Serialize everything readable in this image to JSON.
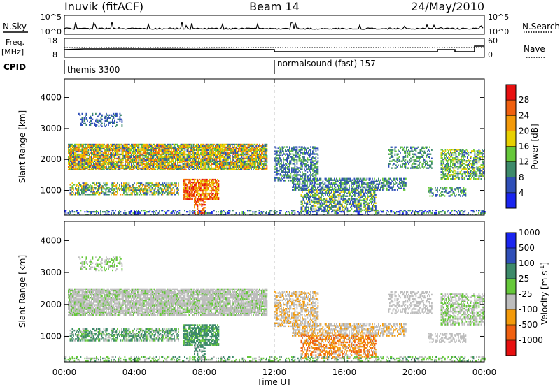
{
  "header": {
    "title_left": "Inuvik (fitACF)",
    "title_center": "Beam 14",
    "title_right": "24/May/2010"
  },
  "nsky_panel": {
    "left_label": "N.Sky",
    "right_label": "N.Search",
    "left_ticks": [
      "10^5",
      "10^0"
    ],
    "right_ticks": [
      "10^5",
      "10^0"
    ]
  },
  "freq_panel": {
    "left_label_1": "Freq.",
    "left_label_2": "[MHz]",
    "right_label": "Nave",
    "left_ticks": [
      "18",
      "8"
    ],
    "right_ticks": [
      "60",
      "0"
    ]
  },
  "cpid": {
    "label": "CPID",
    "modes": [
      {
        "name": "themis 3300",
        "start_hour": 0
      },
      {
        "name": "normalsound (fast) 157",
        "start_hour": 12
      }
    ]
  },
  "chart_data": [
    {
      "type": "heatmap",
      "name": "power",
      "ylabel": "Slant Range [km]",
      "xlabel": "",
      "xlim": [
        0,
        24
      ],
      "ylim": [
        200,
        4600
      ],
      "yticks": [
        1000,
        2000,
        3000,
        4000
      ],
      "colorbar": {
        "label": "Power [dB]",
        "ticks": [
          "4",
          "8",
          "12",
          "16",
          "20",
          "24",
          "28"
        ],
        "colors": [
          "#1a25f0",
          "#2f4fb8",
          "#3d8a6a",
          "#66c83a",
          "#e8d000",
          "#f39a0a",
          "#f06010",
          "#e81010"
        ]
      }
    },
    {
      "type": "heatmap",
      "name": "velocity",
      "ylabel": "Slant Range [km]",
      "xlabel": "Time UT",
      "xlim": [
        0,
        24
      ],
      "ylim": [
        200,
        4600
      ],
      "yticks": [
        1000,
        2000,
        3000,
        4000
      ],
      "xtick_labels": [
        "00:00",
        "04:00",
        "08:00",
        "12:00",
        "16:00",
        "20:00",
        "00:00"
      ],
      "colorbar": {
        "label": "Velocity [m s",
        "label_sup": "-1",
        "label_close": "]",
        "ticks": [
          "1000",
          "500",
          "100",
          "25",
          "-25",
          "-100",
          "-500",
          "-1000"
        ],
        "colors": [
          "#1a25f0",
          "#2f4fb8",
          "#3d8a6a",
          "#66c83a",
          "#bdbdbd",
          "#f39a0a",
          "#f06010",
          "#e81010"
        ]
      }
    }
  ]
}
